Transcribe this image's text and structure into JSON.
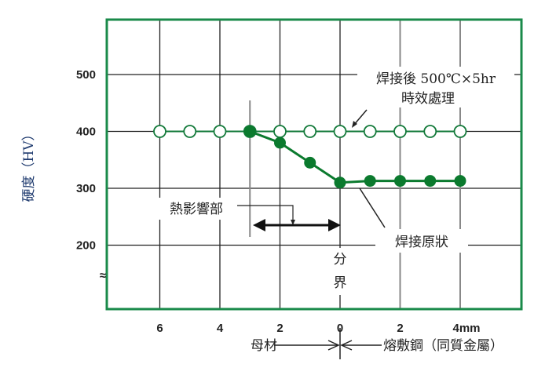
{
  "chart_data": {
    "type": "line",
    "ylabel": "硬度（HV）",
    "ylim": [
      120,
      597
    ],
    "xlim": [
      -7.5,
      6.2
    ],
    "y_ticks": [
      500,
      400,
      300,
      200
    ],
    "x_ticks": [
      {
        "value": -6,
        "label": "6"
      },
      {
        "value": -4,
        "label": "4"
      },
      {
        "value": -2,
        "label": "2"
      },
      {
        "value": 0,
        "label": "0"
      },
      {
        "value": 2,
        "label": "2"
      },
      {
        "value": 4,
        "label": "4mm"
      }
    ],
    "grid": true,
    "axis_break": "≈",
    "series": [
      {
        "name": "焊接後 500℃×5hr 時效處理",
        "marker": "open-circle",
        "color": "#137a3a",
        "x": [
          -6,
          -5,
          -4,
          -3,
          -2,
          -1,
          0,
          1,
          2,
          3,
          4
        ],
        "y": [
          400,
          400,
          400,
          400,
          400,
          400,
          400,
          400,
          400,
          400,
          400
        ]
      },
      {
        "name": "焊接原狀",
        "marker": "filled-circle",
        "color": "#0b7a2e",
        "x": [
          -3,
          -2,
          -1,
          0,
          1,
          2,
          3,
          4
        ],
        "y": [
          400,
          380,
          345,
          310,
          313,
          313,
          313,
          313
        ]
      }
    ],
    "annotations": {
      "aged_line1": "焊接後 500℃×5hr",
      "aged_line2": "時效處理",
      "haz": "熱影響部",
      "as_welded": "焊接原狀",
      "boundary_1": "分",
      "boundary_2": "界",
      "base_metal": "母材",
      "weld_metal": "熔敷鋼（同質金屬）"
    },
    "colors": {
      "frame": "#1a8a4a",
      "grid": "#222222",
      "grid_light": "#888888"
    }
  }
}
